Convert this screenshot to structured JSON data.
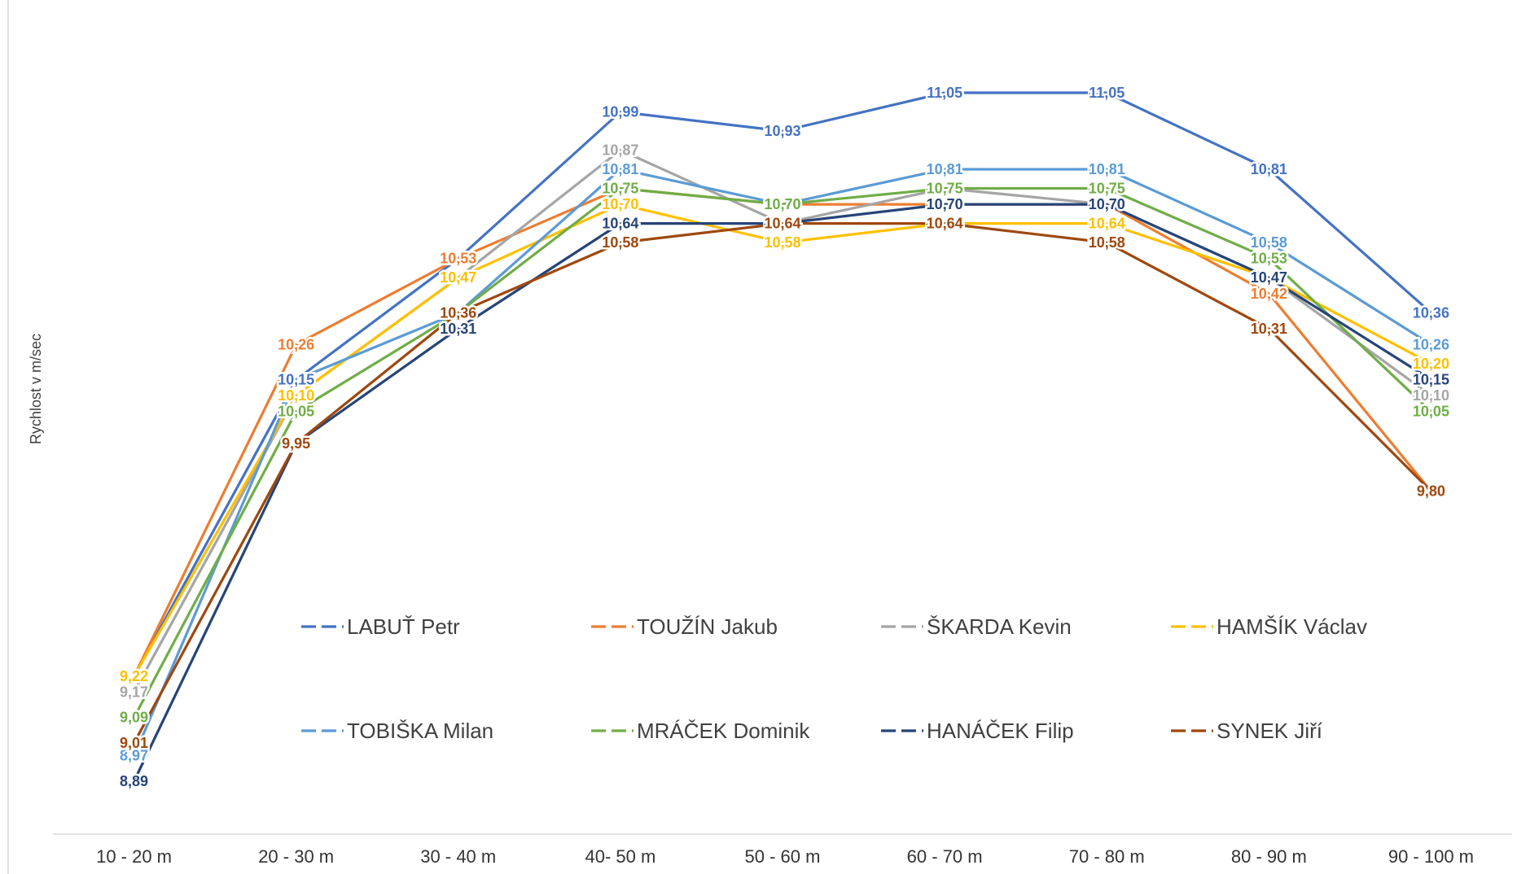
{
  "chart_data": {
    "type": "line",
    "ylabel": "Rychlost v m/sec",
    "categories": [
      "10 - 20 m",
      "20 - 30 m",
      "30 - 40 m",
      "40- 50 m",
      "50 - 60 m",
      "60 - 70 m",
      "70 - 80 m",
      "80 - 90 m",
      "90 - 100 m"
    ],
    "ylim": [
      8.8,
      11.2
    ],
    "grid": false,
    "legend_position": "inside-bottom-center",
    "series": [
      {
        "name": "LABUŤ Petr",
        "color": "#4472C4",
        "values": [
          9.22,
          10.15,
          10.53,
          10.99,
          10.93,
          11.05,
          11.05,
          10.81,
          10.36
        ],
        "labels": [
          "",
          "10,15",
          "",
          "10,99",
          "10,93",
          "11,05",
          "11,05",
          "10,81",
          "10,36"
        ]
      },
      {
        "name": "TOUŽÍN Jakub",
        "color": "#ED7D31",
        "values": [
          9.22,
          10.26,
          10.53,
          10.75,
          10.7,
          10.7,
          10.7,
          10.42,
          9.8
        ],
        "labels": [
          "",
          "10,26",
          "10,53",
          "",
          "",
          "",
          "",
          "10,42",
          ""
        ]
      },
      {
        "name": "ŠKARDA Kevin",
        "color": "#A5A5A5",
        "values": [
          9.17,
          10.1,
          10.47,
          10.87,
          10.64,
          10.75,
          10.7,
          10.47,
          10.1
        ],
        "labels": [
          "9,17",
          "",
          "",
          "10,87",
          "",
          "",
          "",
          "",
          "10,10"
        ]
      },
      {
        "name": "HAMŠÍK Václav",
        "color": "#FFC000",
        "values": [
          9.22,
          10.1,
          10.47,
          10.7,
          10.58,
          10.64,
          10.64,
          10.47,
          10.2
        ],
        "labels": [
          "9,22",
          "10,10",
          "10,47",
          "10,70",
          "10,58",
          "",
          "10,64",
          "",
          "10,20"
        ]
      },
      {
        "name": "TOBIŠKA Milan",
        "color": "#5B9BD5",
        "values": [
          8.97,
          10.15,
          10.36,
          10.81,
          10.7,
          10.81,
          10.81,
          10.58,
          10.26
        ],
        "labels": [
          "8,97",
          "",
          "",
          "10,81",
          "",
          "10,81",
          "10,81",
          "10,58",
          "10,26"
        ]
      },
      {
        "name": "MRÁČEK Dominik",
        "color": "#70AD47",
        "values": [
          9.09,
          10.05,
          10.36,
          10.75,
          10.7,
          10.75,
          10.75,
          10.53,
          10.05
        ],
        "labels": [
          "9,09",
          "10,05",
          "",
          "10,75",
          "10,70",
          "10,75",
          "10,75",
          "10,53",
          "10,05"
        ]
      },
      {
        "name": "HANÁČEK Filip",
        "color": "#264478",
        "values": [
          8.89,
          9.95,
          10.31,
          10.64,
          10.64,
          10.7,
          10.7,
          10.47,
          10.15
        ],
        "labels": [
          "8,89",
          "",
          "10,31",
          "10,64",
          "",
          "10,70",
          "10,70",
          "10,47",
          "10,15"
        ]
      },
      {
        "name": "SYNEK Jiří",
        "color": "#9E480E",
        "values": [
          9.01,
          9.95,
          10.36,
          10.58,
          10.64,
          10.64,
          10.58,
          10.31,
          9.8
        ],
        "labels": [
          "9,01",
          "9,95",
          "10,36",
          "10,58",
          "10,64",
          "10,64",
          "10,58",
          "10,31",
          "9,80"
        ]
      }
    ]
  }
}
